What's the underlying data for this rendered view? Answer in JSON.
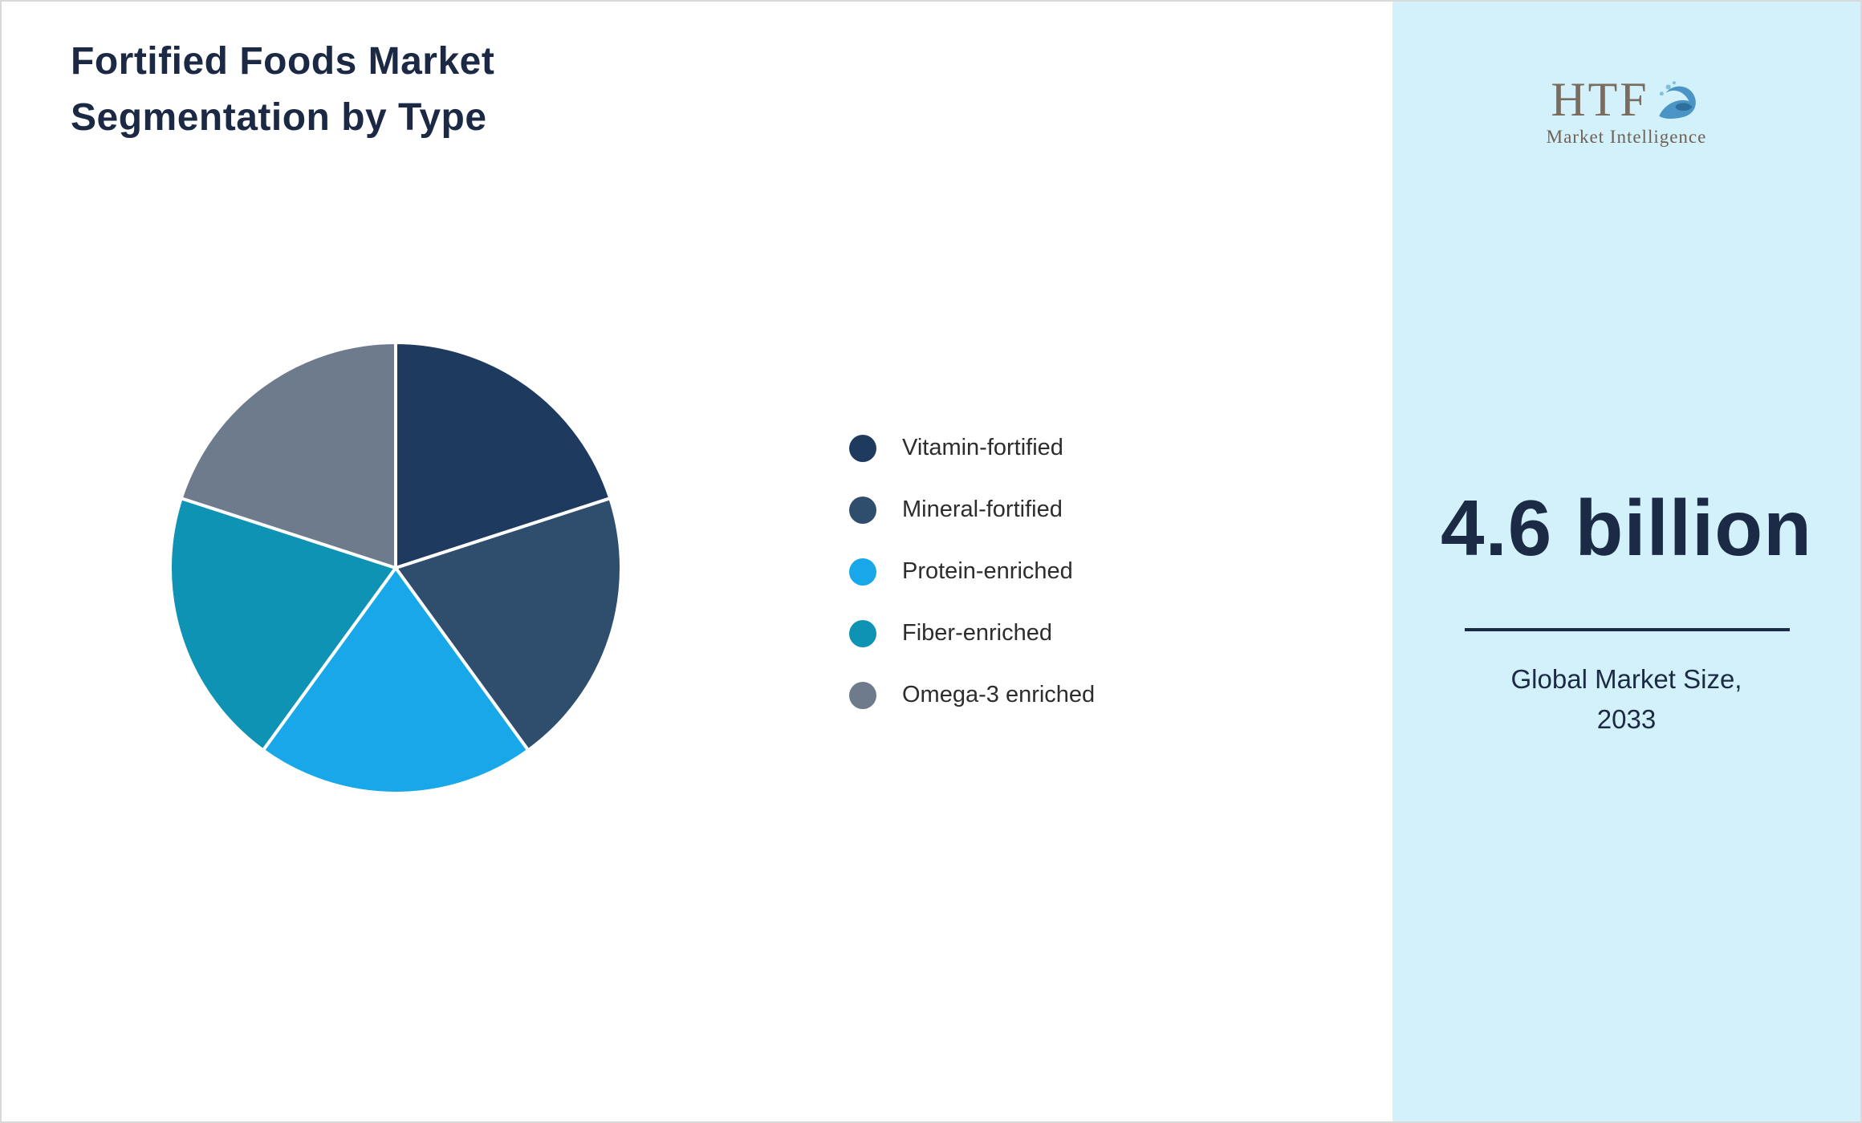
{
  "title": {
    "line1": "Fortified Foods Market",
    "line2": "Segmentation by Type"
  },
  "chart_data": {
    "type": "pie",
    "title": "Fortified Foods Market Segmentation by Type",
    "labels": [
      "Vitamin-fortified",
      "Mineral-fortified",
      "Protein-enriched",
      "Fiber-enriched",
      "Omega-3 enriched"
    ],
    "values": [
      20,
      20,
      20,
      20,
      20
    ],
    "colors": [
      "#1f3a5f",
      "#2f4e6e",
      "#18a8ea",
      "#0e93b5",
      "#6d7b8c"
    ],
    "start_angle_deg": 0,
    "direction": "clockwise",
    "legend_position": "right",
    "slice_separator_color": "#ffffff"
  },
  "sidebar": {
    "background": "#d2f1fa",
    "logo": {
      "text": "HTF",
      "subtext": "Market Intelligence",
      "icon": "dolphin-splash-icon"
    },
    "metric_value": "4.6 billion",
    "caption_line1": "Global Market Size,",
    "caption_line2": "2033"
  }
}
